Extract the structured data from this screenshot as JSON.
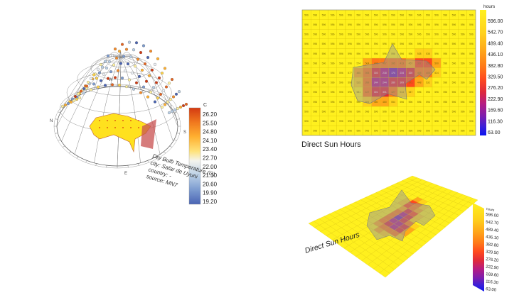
{
  "sunpath_panel": {
    "legend_unit": "C",
    "legend_ticks": [
      "26.20",
      "25.50",
      "24.80",
      "24.10",
      "23.40",
      "22.70",
      "22.00",
      "21.30",
      "20.60",
      "19.90",
      "19.20"
    ],
    "info_lines": [
      "Dry Bulb Temperature (C)",
      "city: Salar de Uyuni",
      "country: -",
      "source: MN7"
    ],
    "compass": [
      "N",
      "E",
      "S",
      "W"
    ]
  },
  "top_panel": {
    "caption": "Direct Sun Hours",
    "legend_unit": "hours",
    "legend_ticks": [
      "596.00",
      "542.70",
      "489.40",
      "436.10",
      "382.80",
      "329.50",
      "276.20",
      "222.90",
      "169.60",
      "116.30",
      "63.00"
    ]
  },
  "bottom_panel": {
    "caption": "Direct Sun Hours",
    "legend_unit": "hours",
    "legend_ticks": [
      "596.00",
      "542.70",
      "489.40",
      "436.10",
      "382.80",
      "329.50",
      "276.20",
      "222.90",
      "169.60",
      "116.30",
      "63.00"
    ]
  },
  "chart_data": [
    {
      "type": "heatmap",
      "title": "Direct Sun Hours",
      "unit": "hours",
      "value_range": [
        63.0,
        596.0
      ],
      "grid_cols": 20,
      "grid_rows": 13,
      "notes": "Analysis grid is mostly at the maximum (596 h); a low-value region sits under the translucent canopy in the middle rows."
    },
    {
      "type": "heatmap",
      "title": "Direct Sun Hours",
      "unit": "hours",
      "value_range": [
        63.0,
        596.0
      ],
      "view": "perspective"
    },
    {
      "type": "scatter",
      "title": "Dry Bulb Temperature (C)",
      "unit": "C",
      "value_range": [
        19.2,
        26.2
      ],
      "view": "3D sun path dome"
    }
  ],
  "colors": {
    "scale": [
      "#0a14f0",
      "#3a1fd8",
      "#7a1eb0",
      "#b41c84",
      "#e02a3a",
      "#ff4a1e",
      "#ff7a18",
      "#ffa81a",
      "#ffd21c",
      "#fff01e"
    ],
    "temp_scale": [
      "#4a64b4",
      "#7c9bd0",
      "#b9cfe6",
      "#eef2f7",
      "#fff2a0",
      "#ffd34a",
      "#ffb030",
      "#f58a28",
      "#e8641e",
      "#d33a12"
    ]
  }
}
